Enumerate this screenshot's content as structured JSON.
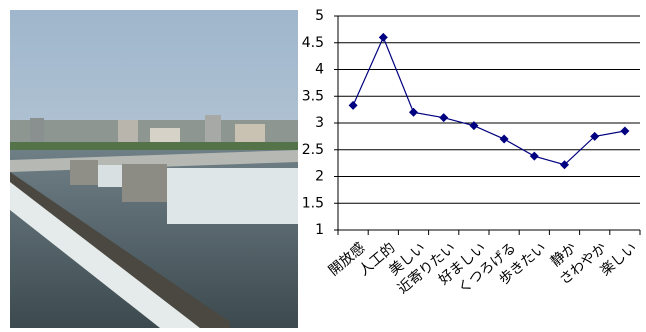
{
  "chart_data": {
    "type": "line",
    "categories": [
      "開放感",
      "人工的",
      "美しい",
      "近寄りたい",
      "好ましい",
      "くつろげる",
      "歩きたい",
      "静か",
      "さわやか",
      "楽しい"
    ],
    "series": [
      {
        "color": "#000080",
        "values": [
          3.33,
          4.6,
          3.2,
          3.1,
          2.95,
          2.7,
          2.38,
          2.22,
          2.75,
          2.85
        ]
      }
    ],
    "ylim": [
      1,
      5
    ],
    "yticks": [
      1,
      1.5,
      2,
      2.5,
      3,
      3.5,
      4,
      4.5,
      5
    ],
    "grid": true
  }
}
